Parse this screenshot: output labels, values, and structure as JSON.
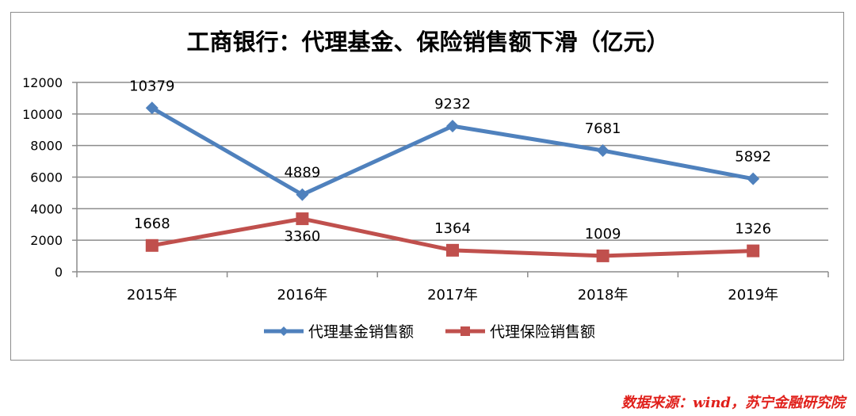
{
  "chart_data": {
    "type": "line",
    "title": "工商银行：代理基金、保险销售额下滑（亿元）",
    "categories": [
      "2015年",
      "2016年",
      "2017年",
      "2018年",
      "2019年"
    ],
    "ylim": [
      0,
      12000
    ],
    "yticks": [
      0,
      2000,
      4000,
      6000,
      8000,
      10000,
      12000
    ],
    "grid": true,
    "legend_position": "bottom",
    "series": [
      {
        "name": "代理基金销售额",
        "color": "#4f81bd",
        "marker": "diamond",
        "values": [
          10379,
          4889,
          9232,
          7681,
          5892
        ],
        "labels": [
          "10379",
          "4889",
          "9232",
          "7681",
          "5892"
        ]
      },
      {
        "name": "代理保险销售额",
        "color": "#c0504d",
        "marker": "square",
        "values": [
          1668,
          3360,
          1364,
          1009,
          1326
        ],
        "labels": [
          "1668",
          "3360",
          "1364",
          "1009",
          "1326"
        ]
      }
    ]
  },
  "source": "数据来源：wind，苏宁金融研究院"
}
